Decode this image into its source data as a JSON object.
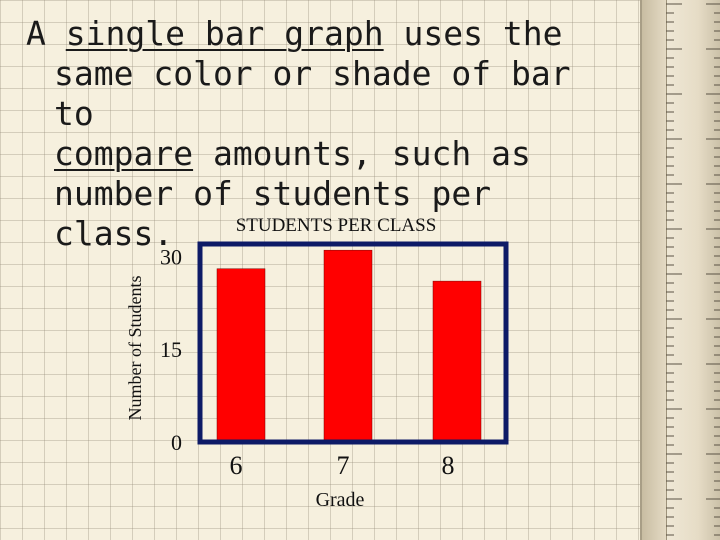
{
  "headline": {
    "part1": "A ",
    "term": "single bar graph",
    "part2": " uses the",
    "line2": "same color or shade of bar to",
    "verb": "compare",
    "line3_rest": " amounts, such as",
    "line4": "number of students per class."
  },
  "chart_data": {
    "type": "bar",
    "title": "STUDENTS PER CLASS",
    "xlabel": "Grade",
    "ylabel": "Number of Students",
    "categories": [
      "6",
      "7",
      "8"
    ],
    "values": [
      28,
      31,
      26
    ],
    "ylim": [
      0,
      32
    ],
    "yticks": [
      0,
      15,
      30
    ],
    "ytick_labels": [
      "0",
      "15",
      "30"
    ],
    "grid": false,
    "bar_color": "#ff0000",
    "frame_color": "#0d1a66"
  },
  "colors": {
    "background": "#f6f0de",
    "text": "#1a1a1a"
  }
}
